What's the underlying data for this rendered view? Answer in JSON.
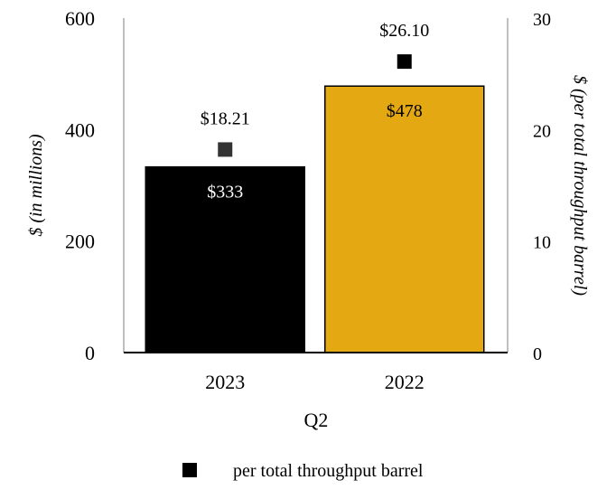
{
  "chart_data": {
    "type": "bar",
    "categories": [
      "2023",
      "2022"
    ],
    "xlabel": "Q2",
    "ylabel": "$ (in millions)",
    "y2label": "$ (per total throughput barrel)",
    "ylim": [
      0,
      600
    ],
    "y2lim": [
      0,
      30
    ],
    "yticks": [
      "0",
      "200",
      "400",
      "600"
    ],
    "y2ticks": [
      "0",
      "10",
      "20",
      "30"
    ],
    "grid": false,
    "legend_position": "bottom",
    "series": [
      {
        "name": "$ in millions",
        "type": "bar",
        "axis": "left",
        "values": [
          333,
          478
        ],
        "labels": [
          "$333",
          "$478"
        ],
        "colors": [
          "#000000",
          "#E3A812"
        ],
        "label_colors": [
          "#ffffff",
          "#000000"
        ]
      },
      {
        "name": "per total throughput barrel",
        "type": "marker",
        "axis": "right",
        "values": [
          18.21,
          26.1
        ],
        "labels": [
          "$18.21",
          "$26.10"
        ],
        "colors": [
          "#333333",
          "#000000"
        ]
      }
    ],
    "legend": [
      {
        "label": "per total throughput barrel",
        "color": "#000000"
      }
    ]
  }
}
